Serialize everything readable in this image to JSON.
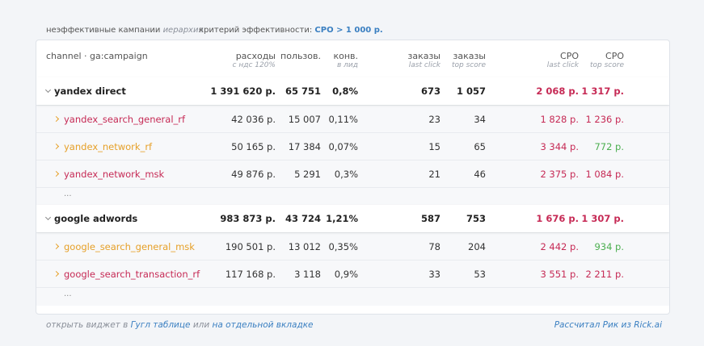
{
  "header": {
    "title": "неэффективные кампании",
    "title_note": "иерархия",
    "criterion_label": "критерий эффективности:",
    "criterion_value": "CPO > 1 000 р."
  },
  "table": {
    "columns": [
      {
        "label": "channel · ga:campaign"
      },
      {
        "label": "расходы",
        "sublabel": "с ндс 120%"
      },
      {
        "label": "пользов."
      },
      {
        "label": "конв.",
        "sublabel": "в лид"
      },
      {
        "label": "заказы",
        "sublabel": "last click"
      },
      {
        "label": "заказы",
        "sublabel": "top score"
      },
      {
        "label": "CPO",
        "sublabel": "last click"
      },
      {
        "label": "CPO",
        "sublabel": "top score"
      }
    ],
    "groups": [
      {
        "cells": [
          "yandex direct",
          "1 391 620 р.",
          "65 751",
          "0,8%",
          "673",
          "1 057",
          "2 068 р.",
          "1 317 р."
        ],
        "cpo_colors": [
          "#c62a55",
          "#c62a55"
        ],
        "children": [
          {
            "cells": [
              "yandex_search_general_rf",
              "42 036 р.",
              "15 007",
              "0,11%",
              "23",
              "34",
              "1 828 р.",
              "1 236 р."
            ],
            "name_color": "#c62a55",
            "cpo_colors": [
              "#c62a55",
              "#c62a55"
            ]
          },
          {
            "cells": [
              "yandex_network_rf",
              "50 165 р.",
              "17 384",
              "0,07%",
              "15",
              "65",
              "3 344 р.",
              "772 р."
            ],
            "name_color": "#e6a028",
            "cpo_colors": [
              "#c62a55",
              "#4caf50"
            ]
          },
          {
            "cells": [
              "yandex_network_msk",
              "49 876 р.",
              "5 291",
              "0,3%",
              "21",
              "46",
              "2 375 р.",
              "1 084 р."
            ],
            "name_color": "#c62a55",
            "cpo_colors": [
              "#c62a55",
              "#c62a55"
            ]
          }
        ],
        "more": "..."
      },
      {
        "cells": [
          "google adwords",
          "983 873 р.",
          "43 724",
          "1,21%",
          "587",
          "753",
          "1 676 р.",
          "1 307 р."
        ],
        "cpo_colors": [
          "#c62a55",
          "#c62a55"
        ],
        "children": [
          {
            "cells": [
              "google_search_general_msk",
              "190 501 р.",
              "13 012",
              "0,35%",
              "78",
              "204",
              "2 442 р.",
              "934 р."
            ],
            "name_color": "#e6a028",
            "cpo_colors": [
              "#c62a55",
              "#4caf50"
            ]
          },
          {
            "cells": [
              "google_search_transaction_rf",
              "117 168 р.",
              "3 118",
              "0,9%",
              "33",
              "53",
              "3 551 р.",
              "2 211 р."
            ],
            "name_color": "#c62a55",
            "cpo_colors": [
              "#c62a55",
              "#c62a55"
            ]
          }
        ],
        "more": "..."
      }
    ]
  },
  "footer": {
    "prefix": "открыть виджет в",
    "link1": "Гугл таблице",
    "middle": "или",
    "link2": "на отдельной вкладке",
    "credit": "Рассчитал Рик из Rick.ai"
  }
}
